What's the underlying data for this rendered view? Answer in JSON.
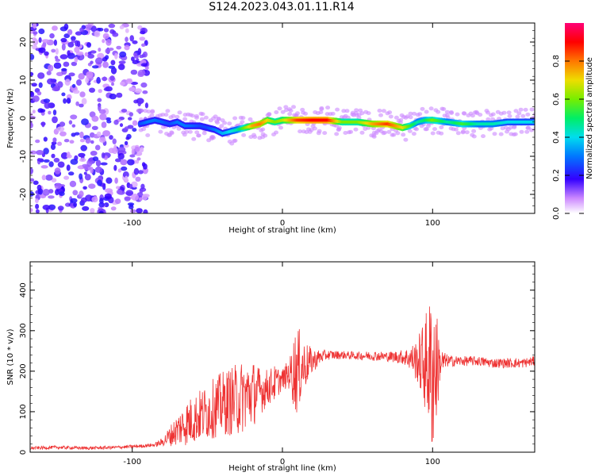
{
  "title": "S124.2023.043.01.11.R14",
  "chart_data": [
    {
      "type": "heatmap",
      "xlabel": "Height of straight line (km)",
      "ylabel": "Frequency (Hz)",
      "xlim": [
        -168,
        168
      ],
      "ylim": [
        -25,
        25
      ],
      "x_ticks": [
        -100,
        0,
        100
      ],
      "y_ticks": [
        -20,
        -10,
        0,
        10,
        20
      ],
      "colorbar": {
        "label": "Normalized spectral amplitude",
        "range": [
          0,
          1
        ],
        "ticks": [
          0.0,
          0.2,
          0.4,
          0.6,
          0.8
        ]
      },
      "ridge": {
        "x": [
          -95,
          -90,
          -85,
          -80,
          -75,
          -70,
          -65,
          -60,
          -55,
          -50,
          -45,
          -40,
          -35,
          -30,
          -25,
          -20,
          -15,
          -10,
          -5,
          0,
          10,
          20,
          30,
          40,
          50,
          60,
          70,
          80,
          85,
          90,
          95,
          100,
          110,
          120,
          130,
          140,
          150,
          160,
          168
        ],
        "freq": [
          -1.5,
          -1,
          -0.5,
          -1,
          -1.5,
          -1,
          -2,
          -2,
          -2,
          -2.5,
          -3,
          -4,
          -3.5,
          -3,
          -2.5,
          -2,
          -1.5,
          -0.5,
          -1,
          -0.5,
          -0.5,
          -0.5,
          -0.5,
          -1,
          -1,
          -1.5,
          -1.5,
          -2.5,
          -2,
          -1,
          -0.5,
          -0.5,
          -1,
          -1.5,
          -1.5,
          -1.5,
          -1,
          -1,
          -1
        ],
        "amp": [
          0.25,
          0.3,
          0.3,
          0.28,
          0.25,
          0.3,
          0.3,
          0.28,
          0.25,
          0.25,
          0.3,
          0.35,
          0.4,
          0.45,
          0.6,
          0.75,
          0.8,
          0.7,
          0.6,
          0.65,
          0.85,
          0.9,
          0.9,
          0.6,
          0.6,
          0.75,
          0.85,
          0.7,
          0.55,
          0.45,
          0.5,
          0.6,
          0.45,
          0.55,
          0.45,
          0.45,
          0.4,
          0.4,
          0.4
        ]
      }
    },
    {
      "type": "line",
      "xlabel": "Height of straight line (km)",
      "ylabel": "SNR (10 * v/v)",
      "xlim": [
        -168,
        168
      ],
      "ylim": [
        0,
        470
      ],
      "x_ticks": [
        -100,
        0,
        100
      ],
      "y_ticks": [
        0,
        100,
        200,
        300,
        400
      ],
      "color": "#ee3333",
      "series": [
        {
          "x": [
            -168,
            -150,
            -130,
            -110,
            -95,
            -85,
            -80,
            -75,
            -70,
            -65,
            -60,
            -55,
            -50,
            -45,
            -40,
            -35,
            -30,
            -25,
            -20,
            -15,
            -10,
            -5,
            0,
            5,
            8,
            10,
            12,
            15,
            20,
            25,
            30,
            40,
            50,
            60,
            70,
            80,
            85,
            90,
            95,
            98,
            100,
            102,
            105,
            110,
            120,
            130,
            140,
            150,
            160,
            168
          ],
          "y": [
            10,
            12,
            10,
            12,
            15,
            18,
            25,
            40,
            55,
            70,
            80,
            90,
            100,
            110,
            120,
            125,
            130,
            140,
            145,
            150,
            160,
            170,
            180,
            195,
            200,
            200,
            210,
            215,
            225,
            235,
            240,
            240,
            238,
            238,
            236,
            235,
            232,
            225,
            220,
            210,
            200,
            210,
            220,
            225,
            225,
            225,
            220,
            220,
            220,
            225
          ],
          "noise": [
            4,
            4,
            4,
            4,
            4,
            5,
            10,
            25,
            40,
            55,
            60,
            65,
            70,
            75,
            80,
            85,
            90,
            90,
            85,
            60,
            45,
            45,
            25,
            40,
            100,
            110,
            90,
            60,
            30,
            18,
            12,
            10,
            10,
            12,
            12,
            18,
            30,
            55,
            120,
            170,
            220,
            170,
            40,
            15,
            12,
            12,
            12,
            12,
            12,
            12
          ]
        }
      ]
    }
  ]
}
